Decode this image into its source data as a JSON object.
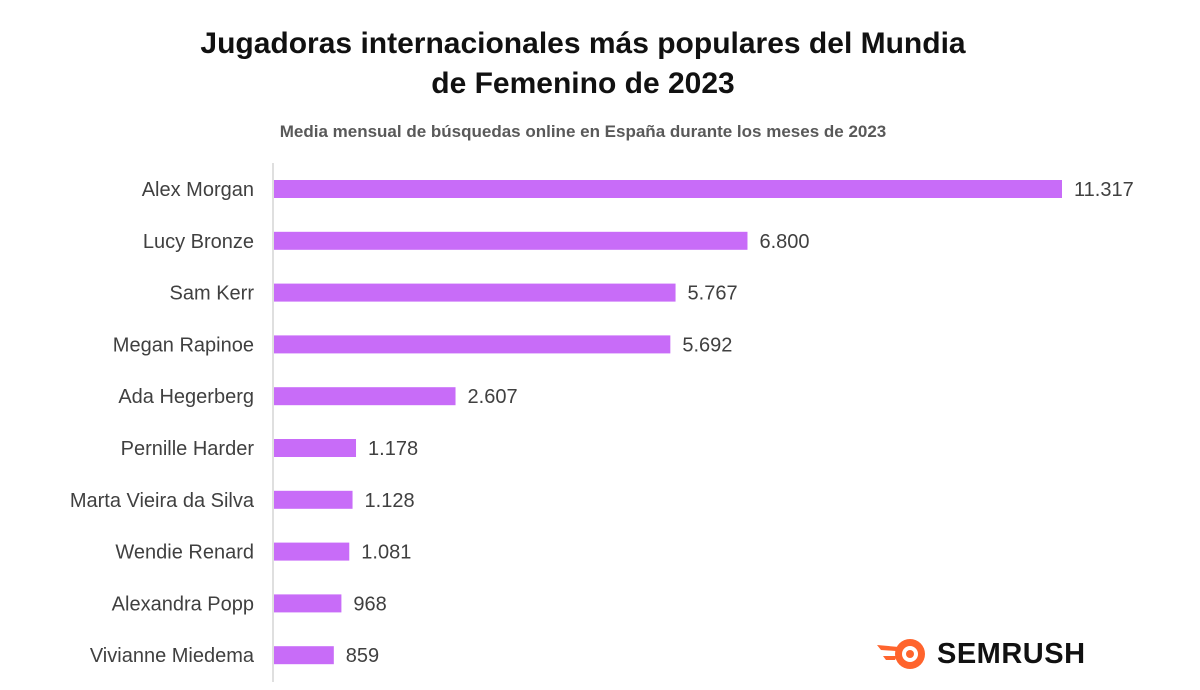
{
  "title_lines": [
    "Jugadoras internacionales más populares del Mundia",
    "de Femenino de 2023"
  ],
  "subtitle": "Media mensual de búsquedas online en España durante los meses de 2023",
  "brand": "SEMRUSH",
  "colors": {
    "bar": "#c86cf8",
    "brand_orange": "#ff642d",
    "axis": "#bfbfbf"
  },
  "chart_data": {
    "type": "bar",
    "orientation": "horizontal",
    "categories": [
      "Alex Morgan",
      "Lucy Bronze",
      "Sam Kerr",
      "Megan Rapinoe",
      "Ada Hegerberg",
      "Pernille Harder",
      "Marta Vieira da Silva",
      "Wendie Renard",
      "Alexandra Popp",
      "Vivianne Miedema"
    ],
    "values": [
      11317,
      6800,
      5767,
      5692,
      2607,
      1178,
      1128,
      1081,
      968,
      859
    ],
    "value_labels": [
      "11.317",
      "6.800",
      "5.767",
      "5.692",
      "2.607",
      "1.178",
      "1.128",
      "1.081",
      "968",
      "859"
    ],
    "title": "Jugadoras internacionales más populares del Mundia de Femenino de 2023",
    "subtitle": "Media mensual de búsquedas online en España durante los meses de 2023",
    "xlabel": "",
    "ylabel": "",
    "xlim": [
      0,
      11317
    ],
    "grid": false,
    "legend": "none"
  }
}
